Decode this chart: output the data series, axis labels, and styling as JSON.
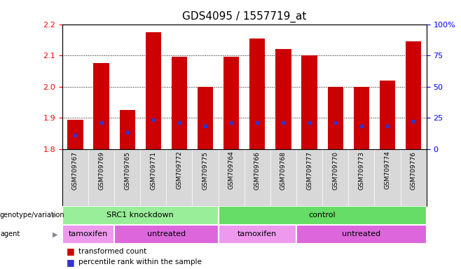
{
  "title": "GDS4095 / 1557719_at",
  "samples": [
    "GSM709767",
    "GSM709769",
    "GSM709765",
    "GSM709771",
    "GSM709772",
    "GSM709775",
    "GSM709764",
    "GSM709766",
    "GSM709768",
    "GSM709777",
    "GSM709770",
    "GSM709773",
    "GSM709774",
    "GSM709776"
  ],
  "bar_heights": [
    1.895,
    2.075,
    1.925,
    2.175,
    2.095,
    2.0,
    2.095,
    2.155,
    2.12,
    2.1,
    2.0,
    2.0,
    2.02,
    2.145
  ],
  "blue_marker_y": [
    1.845,
    1.885,
    1.855,
    1.895,
    1.885,
    1.875,
    1.885,
    1.885,
    1.885,
    1.885,
    1.885,
    1.875,
    1.875,
    1.89
  ],
  "bar_base": 1.8,
  "ylim_left": [
    1.8,
    2.2
  ],
  "yticks_left": [
    1.8,
    1.9,
    2.0,
    2.1,
    2.2
  ],
  "ylim_right": [
    0,
    100
  ],
  "yticks_right": [
    0,
    25,
    50,
    75,
    100
  ],
  "ytick_labels_right": [
    "0",
    "25",
    "50",
    "75",
    "100%"
  ],
  "bar_color": "#cc0000",
  "blue_color": "#3333cc",
  "bar_width": 0.6,
  "grid_yticks": [
    1.9,
    2.0,
    2.1
  ],
  "genotype_groups": [
    {
      "label": "SRC1 knockdown",
      "start": 0,
      "end": 6,
      "color": "#99ee99"
    },
    {
      "label": "control",
      "start": 6,
      "end": 14,
      "color": "#66dd66"
    }
  ],
  "agent_groups": [
    {
      "label": "tamoxifen",
      "start": 0,
      "end": 2,
      "color": "#ee99ee"
    },
    {
      "label": "untreated",
      "start": 2,
      "end": 6,
      "color": "#dd66dd"
    },
    {
      "label": "tamoxifen",
      "start": 6,
      "end": 9,
      "color": "#ee99ee"
    },
    {
      "label": "untreated",
      "start": 9,
      "end": 14,
      "color": "#dd66dd"
    }
  ],
  "legend_items": [
    {
      "label": "transformed count",
      "color": "#cc0000"
    },
    {
      "label": "percentile rank within the sample",
      "color": "#3333cc"
    }
  ],
  "title_fontsize": 11,
  "tick_fontsize": 8,
  "background_color": "#ffffff"
}
